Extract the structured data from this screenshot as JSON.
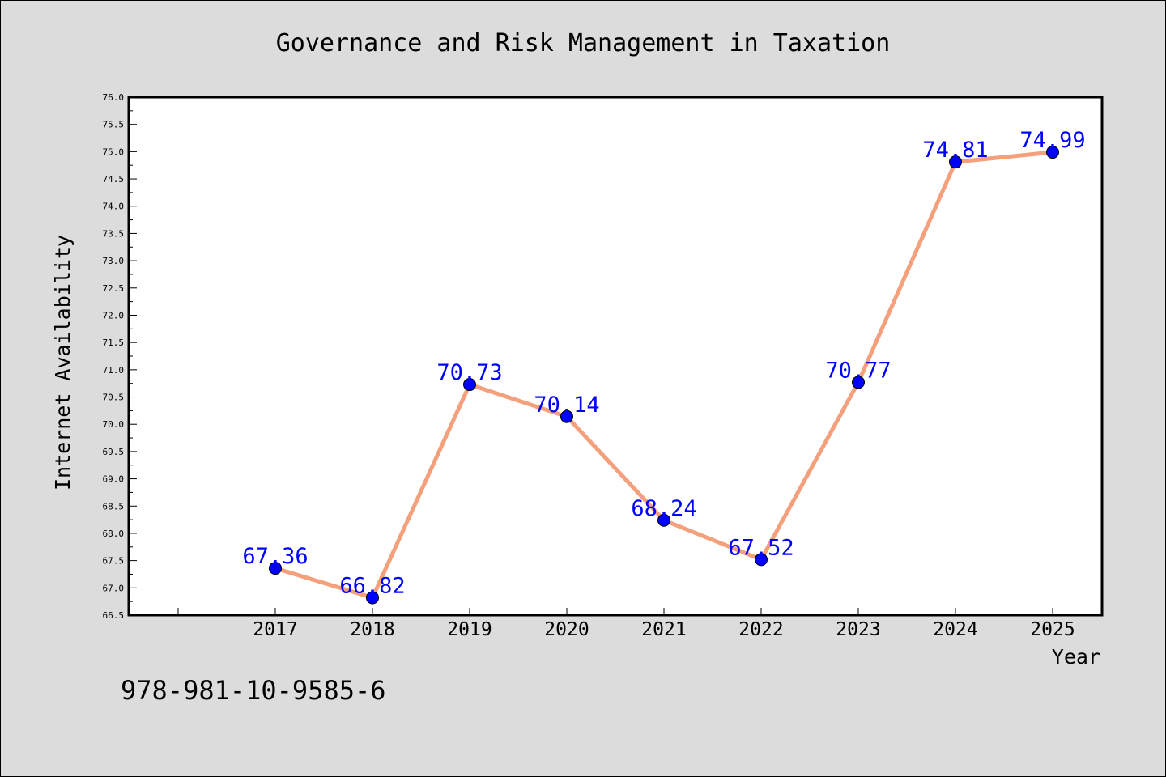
{
  "chart_data": {
    "type": "line",
    "title": "Governance and Risk Management in Taxation",
    "xlabel": "Year",
    "ylabel": "Internet Availability",
    "categories": [
      "2017",
      "2018",
      "2019",
      "2020",
      "2021",
      "2022",
      "2023",
      "2024",
      "2025"
    ],
    "values": [
      67.36,
      66.82,
      70.73,
      70.14,
      68.24,
      67.52,
      70.77,
      74.81,
      74.99
    ],
    "data_labels": [
      "67.36",
      "66.82",
      "70.73",
      "70.14",
      "68.24",
      "67.52",
      "70.77",
      "74.81",
      "74.99"
    ],
    "ylim": [
      66.5,
      76.0
    ],
    "yticks": [
      "66.5",
      "67.0",
      "67.5",
      "68.0",
      "68.5",
      "69.0",
      "69.5",
      "70.0",
      "70.5",
      "71.0",
      "71.5",
      "72.0",
      "72.5",
      "73.0",
      "73.5",
      "74.0",
      "74.5",
      "75.0",
      "75.5",
      "76.0"
    ],
    "grid": false,
    "colors": {
      "line": "#f4a07c",
      "marker": "#0000ff",
      "label": "#0000ff",
      "background": "#dcdcdc",
      "plot_area": "#ffffff"
    }
  },
  "footer": {
    "isbn": "978-981-10-9585-6"
  }
}
